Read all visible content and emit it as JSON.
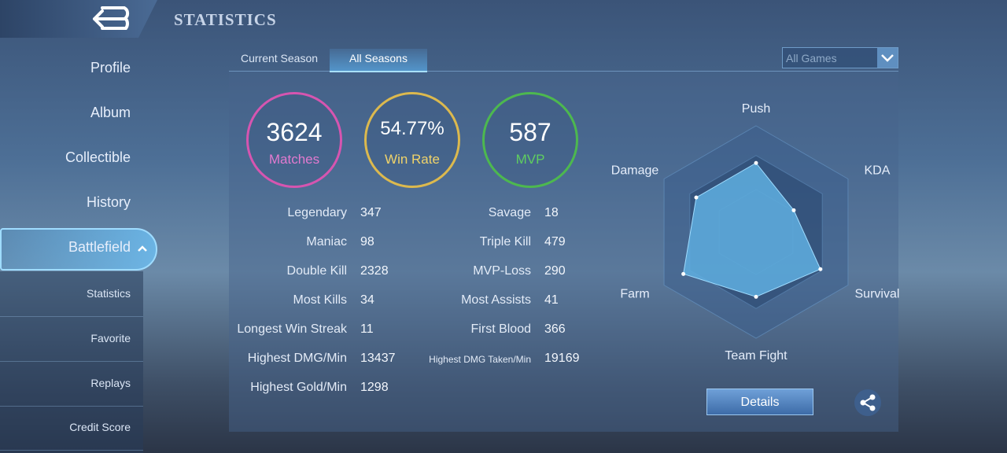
{
  "header": {
    "title": "STATISTICS"
  },
  "nav": {
    "items": [
      "Profile",
      "Album",
      "Collectible",
      "History",
      "Battlefield"
    ],
    "sub_items": [
      "Statistics",
      "Favorite",
      "Replays",
      "Credit Score"
    ]
  },
  "tabs": [
    "Current Season",
    "All Seasons"
  ],
  "filter": "All Games",
  "summary": [
    {
      "value": 3624,
      "label": "Matches"
    },
    {
      "value": "54.77%",
      "label": "Win Rate"
    },
    {
      "value": 587,
      "label": "MVP"
    }
  ],
  "stats_left": [
    [
      "Legendary",
      347
    ],
    [
      "Maniac",
      98
    ],
    [
      "Double Kill",
      2328
    ],
    [
      "Most Kills",
      34
    ],
    [
      "Longest Win Streak",
      11
    ],
    [
      "Highest DMG/Min",
      13437
    ],
    [
      "Highest Gold/Min",
      1298
    ]
  ],
  "stats_right": [
    [
      "Savage",
      18
    ],
    [
      "Triple Kill",
      479
    ],
    [
      "MVP-Loss",
      290
    ],
    [
      "Most Assists",
      41
    ],
    [
      "First Blood",
      366
    ],
    [
      "Highest DMG Taken/Min",
      19169
    ]
  ],
  "radar": {
    "axes": [
      "Push",
      "KDA",
      "Survival",
      "Team Fight",
      "Farm",
      "Damage"
    ],
    "values": [
      0.65,
      0.41,
      0.7,
      0.61,
      0.79,
      0.65
    ]
  },
  "button": "Details"
}
